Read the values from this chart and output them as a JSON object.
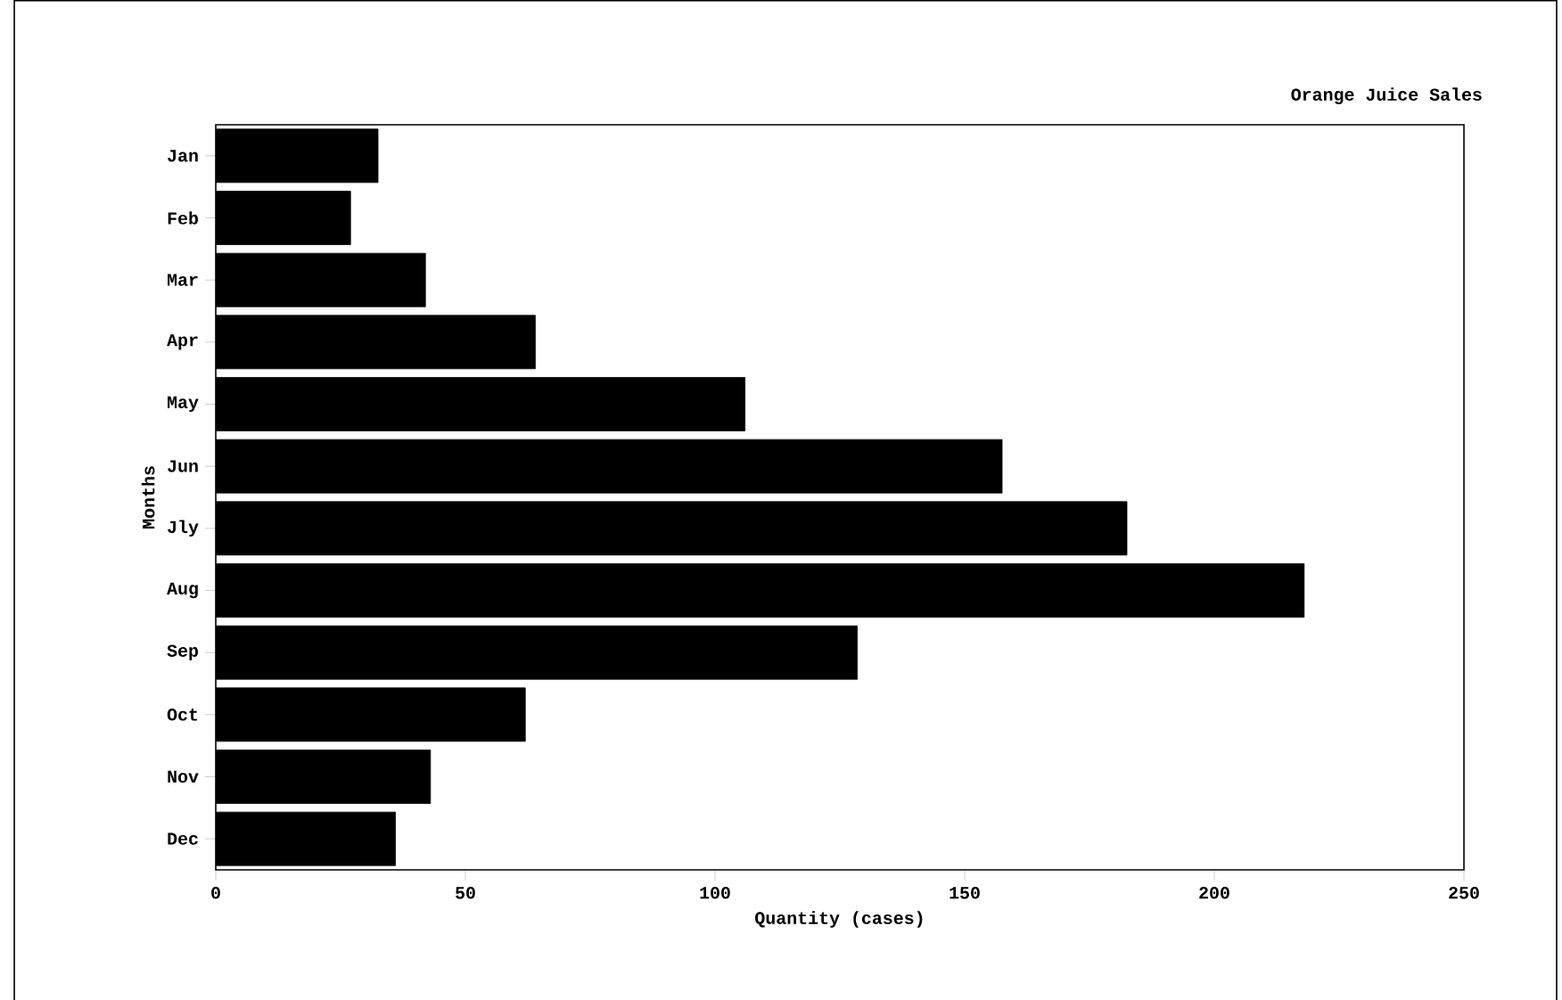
{
  "chart_data": {
    "type": "bar",
    "orientation": "horizontal",
    "title": "Orange Juice Sales",
    "xlabel": "Quantity (cases)",
    "ylabel": "Months",
    "categories": [
      "Jan",
      "Feb",
      "Mar",
      "Apr",
      "May",
      "Jun",
      "Jly",
      "Aug",
      "Sep",
      "Oct",
      "Nov",
      "Dec"
    ],
    "values": [
      32.5,
      27,
      42,
      64,
      106,
      157.5,
      182.5,
      218,
      128.5,
      62,
      43,
      36
    ],
    "color": "#000000",
    "xlim": [
      0,
      250
    ],
    "xticks": [
      0,
      50,
      100,
      150,
      200,
      250
    ],
    "grid": false
  }
}
